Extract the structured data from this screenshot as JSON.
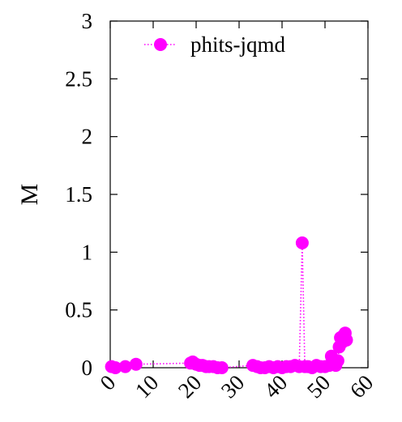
{
  "chart_data": {
    "type": "line",
    "title": "",
    "xlabel": "",
    "ylabel": "M",
    "xlim": [
      0,
      60
    ],
    "ylim": [
      0,
      3
    ],
    "xticks": [
      "0",
      "10",
      "20",
      "30",
      "40",
      "50",
      "60"
    ],
    "yticks": [
      "0",
      "0.5",
      "1",
      "1.5",
      "2",
      "2.5",
      "3"
    ],
    "grid": false,
    "legend_position": "top-right",
    "series": [
      {
        "name": "phits-jqmd",
        "color": "#ff00ff",
        "line_style": "dotted",
        "marker": "circle",
        "points": [
          [
            0.3,
            0.01
          ],
          [
            1.2,
            0.0
          ],
          [
            3.5,
            0.01
          ],
          [
            6.0,
            0.03
          ],
          [
            18.7,
            0.04
          ],
          [
            19.2,
            0.05
          ],
          [
            20.0,
            0.03
          ],
          [
            20.8,
            0.02
          ],
          [
            21.5,
            0.02
          ],
          [
            22.3,
            0.01
          ],
          [
            23.0,
            0.01
          ],
          [
            24.0,
            0.01
          ],
          [
            25.0,
            0.0
          ],
          [
            26.0,
            0.0
          ],
          [
            33.2,
            0.02
          ],
          [
            34.2,
            0.01
          ],
          [
            35.0,
            0.0
          ],
          [
            36.0,
            0.0
          ],
          [
            37.0,
            0.01
          ],
          [
            38.0,
            0.0
          ],
          [
            39.0,
            0.01
          ],
          [
            40.0,
            0.0
          ],
          [
            41.0,
            0.01
          ],
          [
            42.0,
            0.01
          ],
          [
            43.0,
            0.02
          ],
          [
            44.0,
            0.01
          ],
          [
            44.7,
            1.08
          ],
          [
            45.3,
            0.01
          ],
          [
            46.0,
            0.01
          ],
          [
            47.0,
            0.0
          ],
          [
            48.0,
            0.02
          ],
          [
            49.0,
            0.01
          ],
          [
            50.0,
            0.01
          ],
          [
            51.0,
            0.02
          ],
          [
            51.5,
            0.1
          ],
          [
            52.0,
            0.05
          ],
          [
            52.5,
            0.02
          ],
          [
            53.0,
            0.06
          ],
          [
            53.3,
            0.18
          ],
          [
            53.6,
            0.26
          ],
          [
            54.0,
            0.22
          ],
          [
            54.3,
            0.28
          ],
          [
            54.7,
            0.3
          ],
          [
            55.0,
            0.24
          ]
        ]
      }
    ]
  }
}
